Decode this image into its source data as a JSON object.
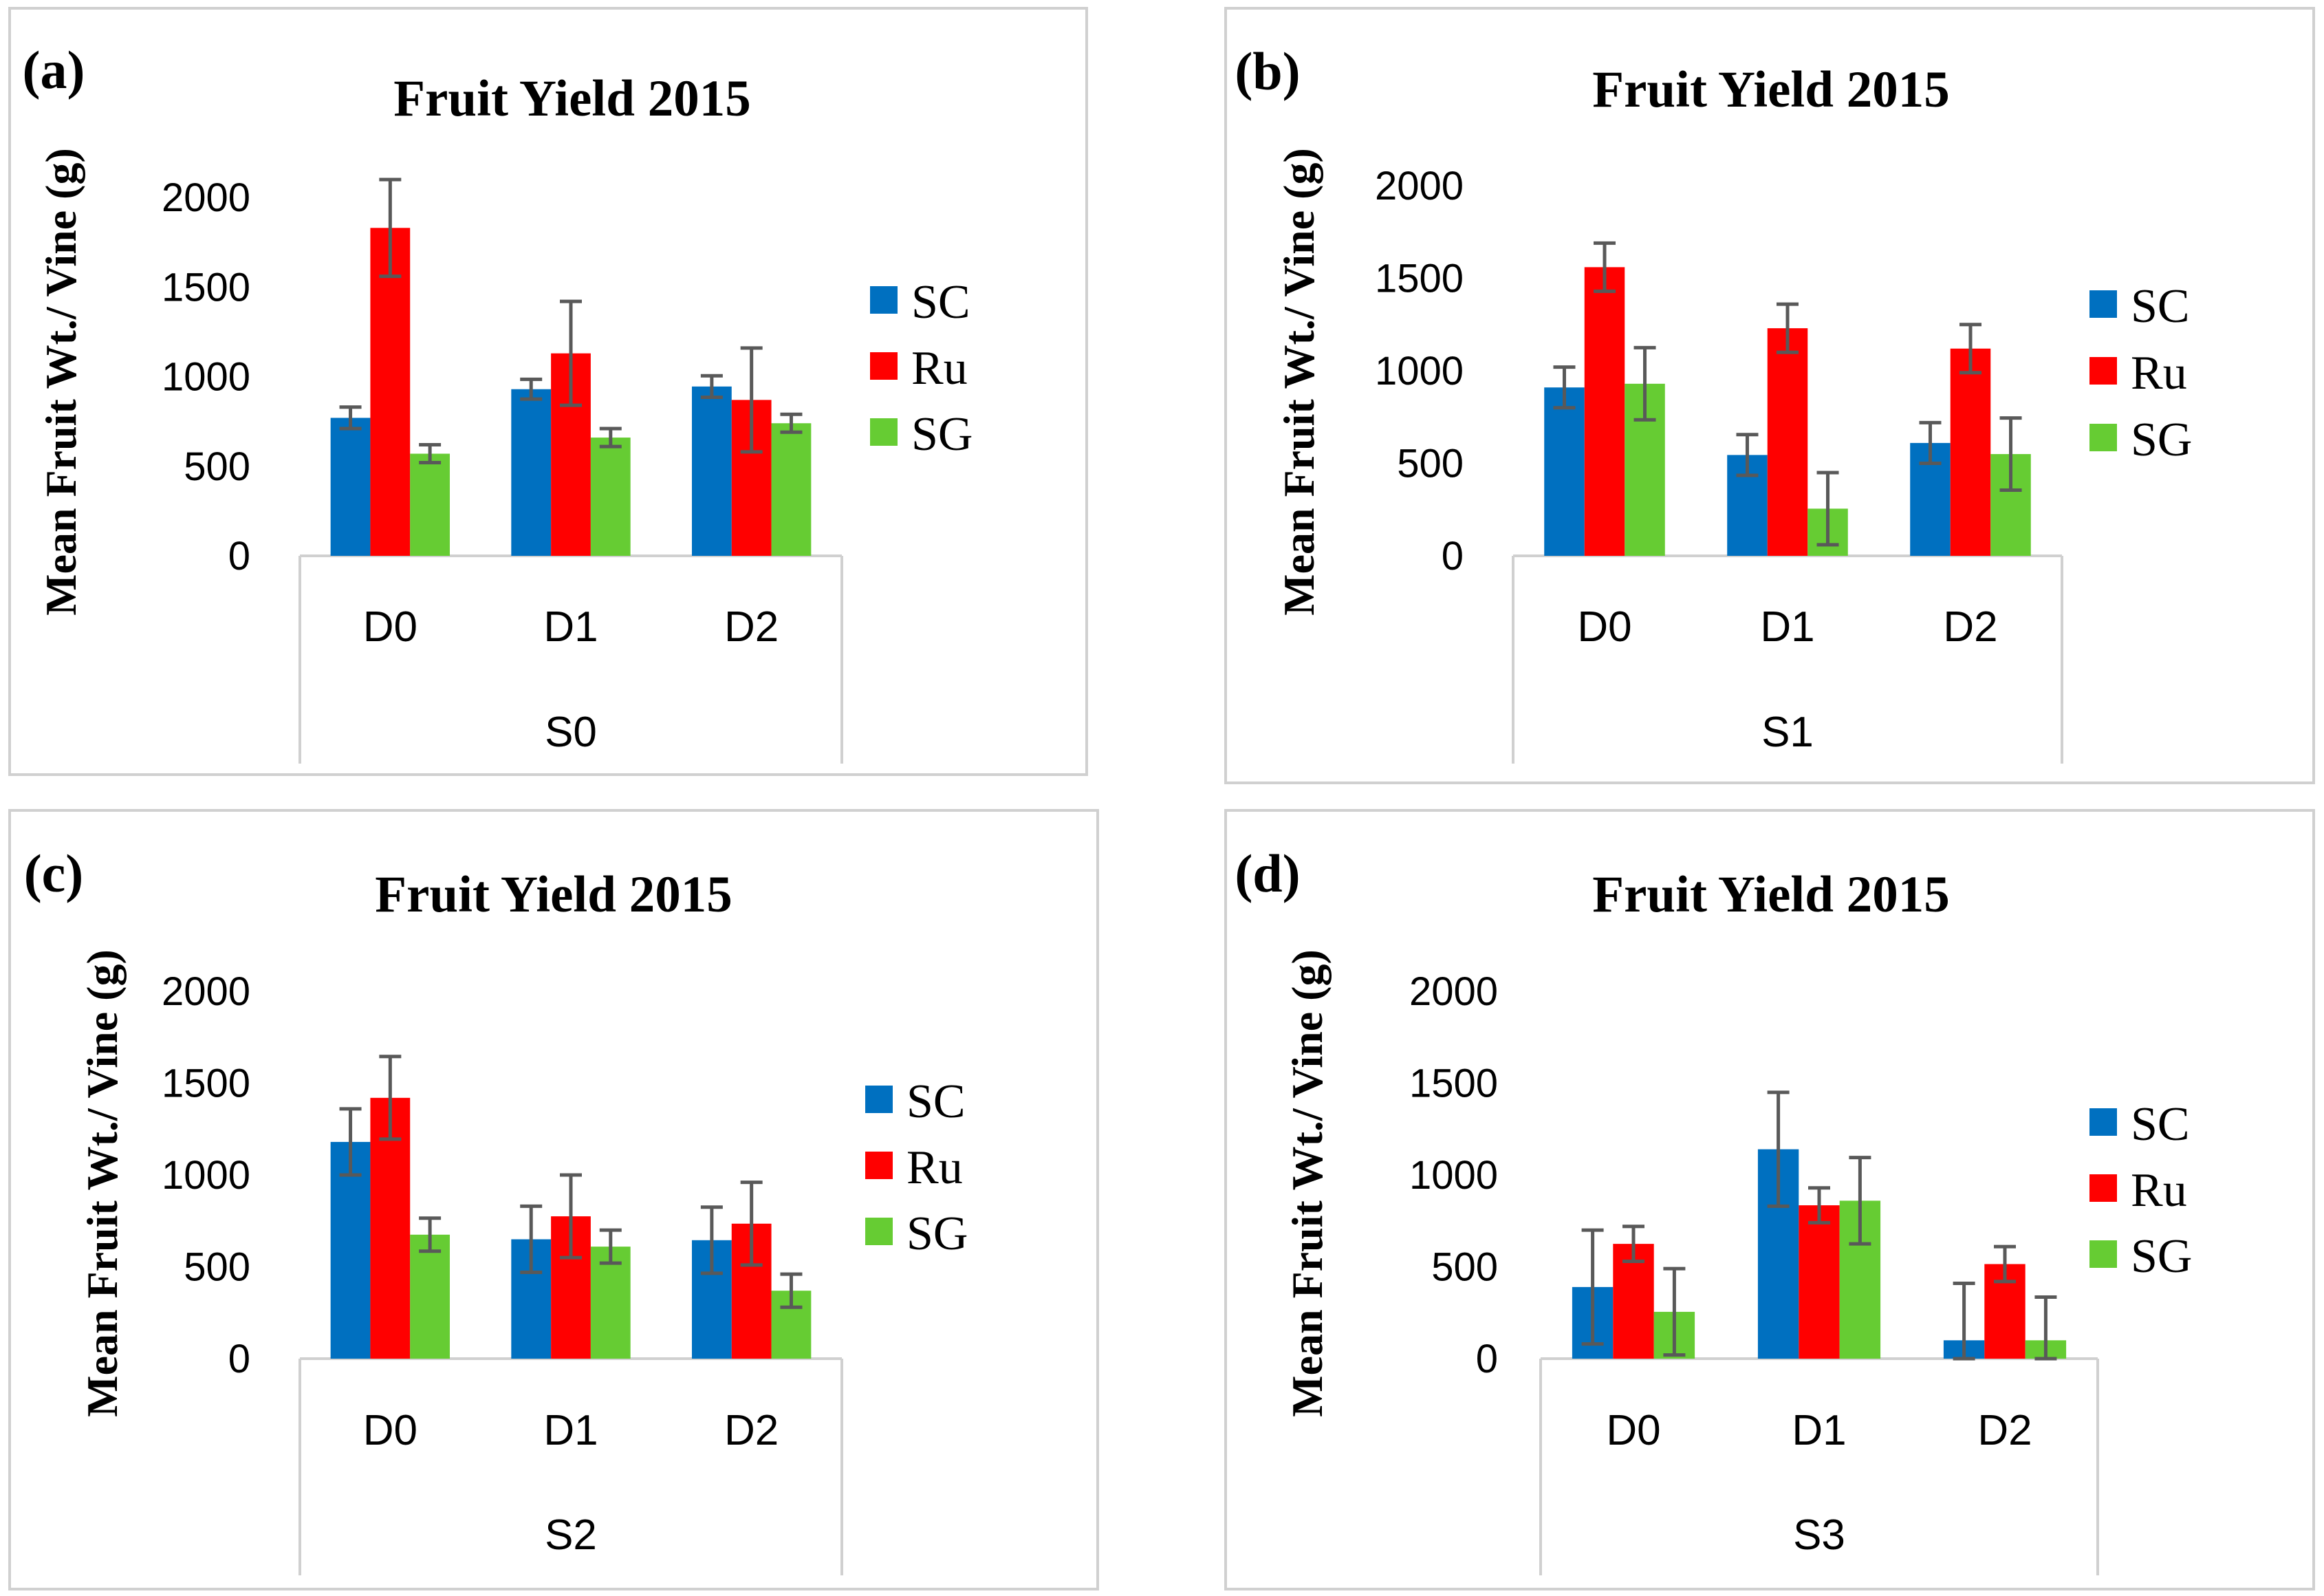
{
  "colors": {
    "SC": "#0070c0",
    "Ru": "#ff0000",
    "SG": "#66cc33",
    "error": "#595959",
    "axis": "#d0d0d0",
    "border": "#d0d0d0"
  },
  "chart_data": [
    {
      "type": "bar",
      "panel_label": "(a)",
      "title": "Fruit Yield 2015",
      "ylabel": "Mean Fruit Wt./ Vine (g)",
      "ylim": [
        0,
        2000
      ],
      "yticks": [
        0,
        500,
        1000,
        1500,
        2000
      ],
      "categories": [
        "D0",
        "D1",
        "D2"
      ],
      "group_label": "S0",
      "series": [
        {
          "name": "SC",
          "values": [
            770,
            930,
            945
          ],
          "errors": [
            60,
            55,
            60
          ]
        },
        {
          "name": "Ru",
          "values": [
            1830,
            1130,
            870
          ],
          "errors": [
            270,
            290,
            290
          ]
        },
        {
          "name": "SG",
          "values": [
            570,
            660,
            740
          ],
          "errors": [
            50,
            50,
            50
          ]
        }
      ]
    },
    {
      "type": "bar",
      "panel_label": "(b)",
      "title": "Fruit Yield 2015",
      "ylabel": "Mean Fruit Wt./ Vine (g)",
      "ylim": [
        0,
        2000
      ],
      "yticks": [
        0,
        500,
        1000,
        1500,
        2000
      ],
      "categories": [
        "D0",
        "D1",
        "D2"
      ],
      "group_label": "S1",
      "series": [
        {
          "name": "SC",
          "values": [
            910,
            545,
            610
          ],
          "errors": [
            110,
            110,
            110
          ]
        },
        {
          "name": "Ru",
          "values": [
            1560,
            1230,
            1120
          ],
          "errors": [
            130,
            130,
            130
          ]
        },
        {
          "name": "SG",
          "values": [
            930,
            255,
            550
          ],
          "errors": [
            195,
            195,
            195
          ]
        }
      ]
    },
    {
      "type": "bar",
      "panel_label": "(c)",
      "title": "Fruit Yield 2015",
      "ylabel": "Mean Fruit Wt./ Vine (g)",
      "ylim": [
        0,
        2000
      ],
      "yticks": [
        0,
        500,
        1000,
        1500,
        2000
      ],
      "categories": [
        "D0",
        "D1",
        "D2"
      ],
      "group_label": "S2",
      "series": [
        {
          "name": "SC",
          "values": [
            1180,
            650,
            645
          ],
          "errors": [
            180,
            180,
            180
          ]
        },
        {
          "name": "Ru",
          "values": [
            1420,
            775,
            735
          ],
          "errors": [
            225,
            225,
            225
          ]
        },
        {
          "name": "SG",
          "values": [
            675,
            610,
            370
          ],
          "errors": [
            90,
            90,
            90
          ]
        }
      ]
    },
    {
      "type": "bar",
      "panel_label": "(d)",
      "title": "Fruit Yield 2015",
      "ylabel": "Mean Fruit Wt./ Vine (g)",
      "ylim": [
        0,
        2000
      ],
      "yticks": [
        0,
        500,
        1000,
        1500,
        2000
      ],
      "categories": [
        "D0",
        "D1",
        "D2"
      ],
      "group_label": "S3",
      "series": [
        {
          "name": "SC",
          "values": [
            390,
            1140,
            100
          ],
          "errors": [
            310,
            310,
            310
          ]
        },
        {
          "name": "Ru",
          "values": [
            625,
            835,
            515
          ],
          "errors": [
            95,
            95,
            95
          ]
        },
        {
          "name": "SG",
          "values": [
            255,
            860,
            100
          ],
          "errors": [
            235,
            235,
            235
          ]
        }
      ]
    }
  ]
}
